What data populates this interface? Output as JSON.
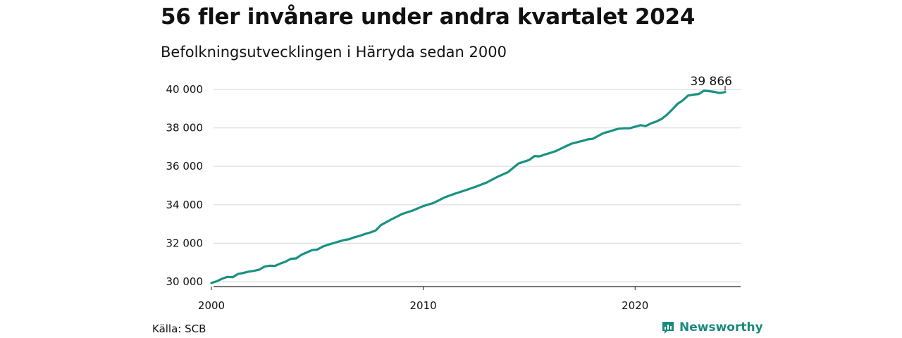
{
  "title": "56 fler invånare under andra kvartalet 2024",
  "subtitle": "Befolkningsutvecklingen i Härryda sedan 2000",
  "source": "Källa: SCB",
  "brand": {
    "name": "Newsworthy",
    "icon": "newsworthy-logo-icon",
    "color": "#1a8a7d"
  },
  "colors": {
    "line": "#1a9182",
    "grid": "#dddddd",
    "axis": "#222222"
  },
  "chart_data": {
    "type": "line",
    "title": "",
    "xlabel": "",
    "ylabel": "",
    "xlim": [
      2000,
      2025
    ],
    "ylim": [
      29700,
      40700
    ],
    "grid": true,
    "y_ticks": [
      30000,
      32000,
      34000,
      36000,
      38000,
      40000
    ],
    "y_tick_labels": [
      "30 000",
      "32 000",
      "34 000",
      "36 000",
      "38 000",
      "40 000"
    ],
    "x_ticks": [
      2000,
      2010,
      2020
    ],
    "x_tick_labels": [
      "2000",
      "2010",
      "2020"
    ],
    "end_label": "39 866",
    "series": [
      {
        "x": [
          2000.0,
          2000.25,
          2000.5,
          2000.75,
          2001.0,
          2001.25,
          2001.5,
          2001.75,
          2002.0,
          2002.25,
          2002.5,
          2002.75,
          2003.0,
          2003.25,
          2003.5,
          2003.75,
          2004.0,
          2004.25,
          2004.5,
          2004.75,
          2005.0,
          2005.25,
          2005.5,
          2005.75,
          2006.0,
          2006.25,
          2006.5,
          2006.75,
          2007.0,
          2007.25,
          2007.5,
          2007.75,
          2008.0,
          2008.5,
          2009.0,
          2009.5,
          2010.0,
          2010.5,
          2011.0,
          2011.5,
          2012.0,
          2012.5,
          2013.0,
          2013.5,
          2014.0,
          2014.5,
          2015.0,
          2015.25,
          2015.5,
          2015.75,
          2016.0,
          2016.25,
          2016.5,
          2016.75,
          2017.0,
          2017.25,
          2017.5,
          2017.75,
          2018.0,
          2018.25,
          2018.5,
          2018.75,
          2019.0,
          2019.25,
          2019.5,
          2019.75,
          2020.0,
          2020.25,
          2020.5,
          2020.75,
          2021.0,
          2021.25,
          2021.5,
          2021.75,
          2022.0,
          2022.25,
          2022.5,
          2022.75,
          2023.0,
          2023.25,
          2023.5,
          2023.75,
          2024.0,
          2024.25
        ],
        "values": [
          29930,
          30020,
          30150,
          30250,
          30230,
          30400,
          30450,
          30520,
          30560,
          30620,
          30780,
          30830,
          30820,
          30940,
          31040,
          31190,
          31210,
          31400,
          31520,
          31640,
          31670,
          31820,
          31920,
          32000,
          32080,
          32160,
          32210,
          32310,
          32380,
          32480,
          32560,
          32660,
          32940,
          33240,
          33520,
          33700,
          33930,
          34100,
          34380,
          34580,
          34760,
          34950,
          35160,
          35450,
          35700,
          36150,
          36330,
          36530,
          36520,
          36620,
          36700,
          36790,
          36920,
          37050,
          37180,
          37250,
          37320,
          37400,
          37430,
          37580,
          37720,
          37800,
          37890,
          37960,
          37980,
          37980,
          38060,
          38140,
          38100,
          38230,
          38330,
          38460,
          38680,
          38950,
          39250,
          39430,
          39680,
          39730,
          39760,
          39930,
          39910,
          39870,
          39810,
          39866
        ]
      }
    ]
  }
}
